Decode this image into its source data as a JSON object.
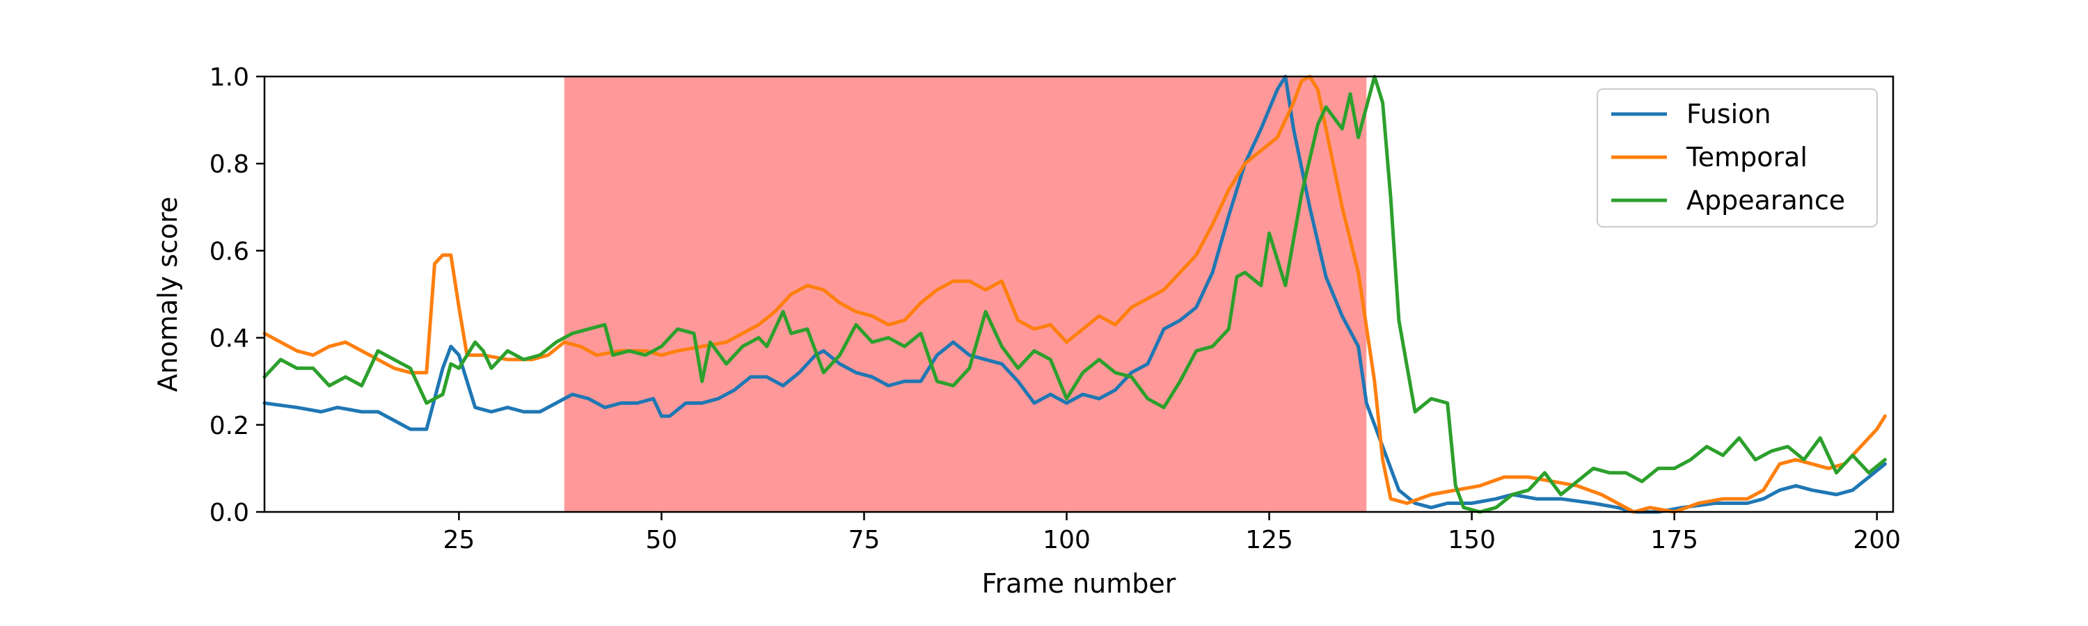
{
  "chart_data": {
    "type": "line",
    "xlabel": "Frame number",
    "ylabel": "Anomaly score",
    "xlim": [
      1,
      202
    ],
    "ylim": [
      0,
      1.0
    ],
    "xticks": [
      25,
      50,
      75,
      100,
      125,
      150,
      175,
      200
    ],
    "yticks": [
      0.0,
      0.2,
      0.4,
      0.6,
      0.8,
      1.0
    ],
    "ytick_labels": [
      "0.0",
      "0.2",
      "0.4",
      "0.6",
      "0.8",
      "1.0"
    ],
    "grid": false,
    "legend_position": "top-right",
    "highlight_region": {
      "x_start": 38,
      "x_end": 137,
      "color": "#ff9999"
    },
    "series": [
      {
        "name": "Fusion",
        "color": "#1f77b4",
        "points": [
          [
            1,
            0.25
          ],
          [
            5,
            0.24
          ],
          [
            8,
            0.23
          ],
          [
            10,
            0.24
          ],
          [
            13,
            0.23
          ],
          [
            15,
            0.23
          ],
          [
            17,
            0.21
          ],
          [
            19,
            0.19
          ],
          [
            21,
            0.19
          ],
          [
            23,
            0.33
          ],
          [
            24,
            0.38
          ],
          [
            25,
            0.36
          ],
          [
            27,
            0.24
          ],
          [
            29,
            0.23
          ],
          [
            31,
            0.24
          ],
          [
            33,
            0.23
          ],
          [
            35,
            0.23
          ],
          [
            37,
            0.25
          ],
          [
            39,
            0.27
          ],
          [
            41,
            0.26
          ],
          [
            43,
            0.24
          ],
          [
            45,
            0.25
          ],
          [
            47,
            0.25
          ],
          [
            49,
            0.26
          ],
          [
            50,
            0.22
          ],
          [
            51,
            0.22
          ],
          [
            53,
            0.25
          ],
          [
            55,
            0.25
          ],
          [
            57,
            0.26
          ],
          [
            59,
            0.28
          ],
          [
            61,
            0.31
          ],
          [
            63,
            0.31
          ],
          [
            65,
            0.29
          ],
          [
            67,
            0.32
          ],
          [
            69,
            0.36
          ],
          [
            70,
            0.37
          ],
          [
            72,
            0.34
          ],
          [
            74,
            0.32
          ],
          [
            76,
            0.31
          ],
          [
            78,
            0.29
          ],
          [
            80,
            0.3
          ],
          [
            82,
            0.3
          ],
          [
            84,
            0.36
          ],
          [
            86,
            0.39
          ],
          [
            88,
            0.36
          ],
          [
            90,
            0.35
          ],
          [
            92,
            0.34
          ],
          [
            94,
            0.3
          ],
          [
            96,
            0.25
          ],
          [
            98,
            0.27
          ],
          [
            100,
            0.25
          ],
          [
            102,
            0.27
          ],
          [
            104,
            0.26
          ],
          [
            106,
            0.28
          ],
          [
            108,
            0.32
          ],
          [
            110,
            0.34
          ],
          [
            112,
            0.42
          ],
          [
            114,
            0.44
          ],
          [
            116,
            0.47
          ],
          [
            118,
            0.55
          ],
          [
            120,
            0.68
          ],
          [
            122,
            0.8
          ],
          [
            124,
            0.88
          ],
          [
            126,
            0.97
          ],
          [
            127,
            1.0
          ],
          [
            128,
            0.88
          ],
          [
            130,
            0.7
          ],
          [
            132,
            0.54
          ],
          [
            134,
            0.45
          ],
          [
            136,
            0.38
          ],
          [
            137,
            0.25
          ],
          [
            139,
            0.15
          ],
          [
            141,
            0.05
          ],
          [
            143,
            0.02
          ],
          [
            145,
            0.01
          ],
          [
            147,
            0.02
          ],
          [
            150,
            0.02
          ],
          [
            153,
            0.03
          ],
          [
            155,
            0.04
          ],
          [
            158,
            0.03
          ],
          [
            161,
            0.03
          ],
          [
            165,
            0.02
          ],
          [
            168,
            0.01
          ],
          [
            170,
            0.0
          ],
          [
            173,
            0.0
          ],
          [
            176,
            0.01
          ],
          [
            180,
            0.02
          ],
          [
            184,
            0.02
          ],
          [
            186,
            0.03
          ],
          [
            188,
            0.05
          ],
          [
            190,
            0.06
          ],
          [
            192,
            0.05
          ],
          [
            195,
            0.04
          ],
          [
            197,
            0.05
          ],
          [
            199,
            0.08
          ],
          [
            201,
            0.11
          ]
        ]
      },
      {
        "name": "Temporal",
        "color": "#ff7f0e",
        "points": [
          [
            1,
            0.41
          ],
          [
            3,
            0.39
          ],
          [
            5,
            0.37
          ],
          [
            7,
            0.36
          ],
          [
            9,
            0.38
          ],
          [
            11,
            0.39
          ],
          [
            13,
            0.37
          ],
          [
            15,
            0.35
          ],
          [
            17,
            0.33
          ],
          [
            19,
            0.32
          ],
          [
            21,
            0.32
          ],
          [
            22,
            0.57
          ],
          [
            23,
            0.59
          ],
          [
            24,
            0.59
          ],
          [
            25,
            0.47
          ],
          [
            26,
            0.36
          ],
          [
            28,
            0.36
          ],
          [
            31,
            0.35
          ],
          [
            34,
            0.35
          ],
          [
            36,
            0.36
          ],
          [
            38,
            0.39
          ],
          [
            40,
            0.38
          ],
          [
            42,
            0.36
          ],
          [
            45,
            0.37
          ],
          [
            48,
            0.37
          ],
          [
            50,
            0.36
          ],
          [
            52,
            0.37
          ],
          [
            55,
            0.38
          ],
          [
            58,
            0.39
          ],
          [
            60,
            0.41
          ],
          [
            62,
            0.43
          ],
          [
            64,
            0.46
          ],
          [
            66,
            0.5
          ],
          [
            68,
            0.52
          ],
          [
            70,
            0.51
          ],
          [
            72,
            0.48
          ],
          [
            74,
            0.46
          ],
          [
            76,
            0.45
          ],
          [
            78,
            0.43
          ],
          [
            80,
            0.44
          ],
          [
            82,
            0.48
          ],
          [
            84,
            0.51
          ],
          [
            86,
            0.53
          ],
          [
            88,
            0.53
          ],
          [
            90,
            0.51
          ],
          [
            92,
            0.53
          ],
          [
            94,
            0.44
          ],
          [
            96,
            0.42
          ],
          [
            98,
            0.43
          ],
          [
            100,
            0.39
          ],
          [
            102,
            0.42
          ],
          [
            104,
            0.45
          ],
          [
            106,
            0.43
          ],
          [
            108,
            0.47
          ],
          [
            110,
            0.49
          ],
          [
            112,
            0.51
          ],
          [
            114,
            0.55
          ],
          [
            116,
            0.59
          ],
          [
            118,
            0.66
          ],
          [
            120,
            0.74
          ],
          [
            122,
            0.8
          ],
          [
            124,
            0.83
          ],
          [
            126,
            0.86
          ],
          [
            128,
            0.94
          ],
          [
            129,
            0.99
          ],
          [
            130,
            1.0
          ],
          [
            131,
            0.97
          ],
          [
            132,
            0.88
          ],
          [
            134,
            0.7
          ],
          [
            136,
            0.55
          ],
          [
            138,
            0.3
          ],
          [
            139,
            0.12
          ],
          [
            140,
            0.03
          ],
          [
            142,
            0.02
          ],
          [
            145,
            0.04
          ],
          [
            148,
            0.05
          ],
          [
            151,
            0.06
          ],
          [
            154,
            0.08
          ],
          [
            157,
            0.08
          ],
          [
            160,
            0.07
          ],
          [
            163,
            0.06
          ],
          [
            166,
            0.04
          ],
          [
            168,
            0.02
          ],
          [
            170,
            0.0
          ],
          [
            172,
            0.01
          ],
          [
            175,
            0.0
          ],
          [
            178,
            0.02
          ],
          [
            181,
            0.03
          ],
          [
            184,
            0.03
          ],
          [
            186,
            0.05
          ],
          [
            188,
            0.11
          ],
          [
            190,
            0.12
          ],
          [
            192,
            0.11
          ],
          [
            194,
            0.1
          ],
          [
            196,
            0.11
          ],
          [
            198,
            0.15
          ],
          [
            200,
            0.19
          ],
          [
            201,
            0.22
          ]
        ]
      },
      {
        "name": "Appearance",
        "color": "#2ca02c",
        "points": [
          [
            1,
            0.31
          ],
          [
            3,
            0.35
          ],
          [
            5,
            0.33
          ],
          [
            7,
            0.33
          ],
          [
            9,
            0.29
          ],
          [
            11,
            0.31
          ],
          [
            13,
            0.29
          ],
          [
            15,
            0.37
          ],
          [
            17,
            0.35
          ],
          [
            19,
            0.33
          ],
          [
            21,
            0.25
          ],
          [
            23,
            0.27
          ],
          [
            24,
            0.34
          ],
          [
            25,
            0.33
          ],
          [
            27,
            0.39
          ],
          [
            28,
            0.37
          ],
          [
            29,
            0.33
          ],
          [
            31,
            0.37
          ],
          [
            33,
            0.35
          ],
          [
            35,
            0.36
          ],
          [
            37,
            0.39
          ],
          [
            39,
            0.41
          ],
          [
            41,
            0.42
          ],
          [
            43,
            0.43
          ],
          [
            44,
            0.36
          ],
          [
            46,
            0.37
          ],
          [
            48,
            0.36
          ],
          [
            50,
            0.38
          ],
          [
            52,
            0.42
          ],
          [
            54,
            0.41
          ],
          [
            55,
            0.3
          ],
          [
            56,
            0.39
          ],
          [
            58,
            0.34
          ],
          [
            60,
            0.38
          ],
          [
            62,
            0.4
          ],
          [
            63,
            0.38
          ],
          [
            65,
            0.46
          ],
          [
            66,
            0.41
          ],
          [
            68,
            0.42
          ],
          [
            70,
            0.32
          ],
          [
            72,
            0.36
          ],
          [
            74,
            0.43
          ],
          [
            76,
            0.39
          ],
          [
            78,
            0.4
          ],
          [
            80,
            0.38
          ],
          [
            82,
            0.41
          ],
          [
            84,
            0.3
          ],
          [
            86,
            0.29
          ],
          [
            88,
            0.33
          ],
          [
            90,
            0.46
          ],
          [
            92,
            0.38
          ],
          [
            94,
            0.33
          ],
          [
            96,
            0.37
          ],
          [
            98,
            0.35
          ],
          [
            100,
            0.26
          ],
          [
            102,
            0.32
          ],
          [
            104,
            0.35
          ],
          [
            106,
            0.32
          ],
          [
            108,
            0.31
          ],
          [
            110,
            0.26
          ],
          [
            112,
            0.24
          ],
          [
            114,
            0.3
          ],
          [
            116,
            0.37
          ],
          [
            118,
            0.38
          ],
          [
            120,
            0.42
          ],
          [
            121,
            0.54
          ],
          [
            122,
            0.55
          ],
          [
            124,
            0.52
          ],
          [
            125,
            0.64
          ],
          [
            127,
            0.52
          ],
          [
            129,
            0.73
          ],
          [
            131,
            0.89
          ],
          [
            132,
            0.93
          ],
          [
            134,
            0.88
          ],
          [
            135,
            0.96
          ],
          [
            136,
            0.86
          ],
          [
            138,
            1.0
          ],
          [
            139,
            0.94
          ],
          [
            140,
            0.72
          ],
          [
            141,
            0.44
          ],
          [
            143,
            0.23
          ],
          [
            145,
            0.26
          ],
          [
            147,
            0.25
          ],
          [
            148,
            0.06
          ],
          [
            149,
            0.01
          ],
          [
            151,
            0.0
          ],
          [
            153,
            0.01
          ],
          [
            155,
            0.04
          ],
          [
            157,
            0.05
          ],
          [
            159,
            0.09
          ],
          [
            161,
            0.04
          ],
          [
            163,
            0.07
          ],
          [
            165,
            0.1
          ],
          [
            167,
            0.09
          ],
          [
            169,
            0.09
          ],
          [
            171,
            0.07
          ],
          [
            173,
            0.1
          ],
          [
            175,
            0.1
          ],
          [
            177,
            0.12
          ],
          [
            179,
            0.15
          ],
          [
            181,
            0.13
          ],
          [
            183,
            0.17
          ],
          [
            185,
            0.12
          ],
          [
            187,
            0.14
          ],
          [
            189,
            0.15
          ],
          [
            191,
            0.12
          ],
          [
            193,
            0.17
          ],
          [
            195,
            0.09
          ],
          [
            197,
            0.13
          ],
          [
            199,
            0.09
          ],
          [
            201,
            0.12
          ]
        ]
      }
    ]
  }
}
